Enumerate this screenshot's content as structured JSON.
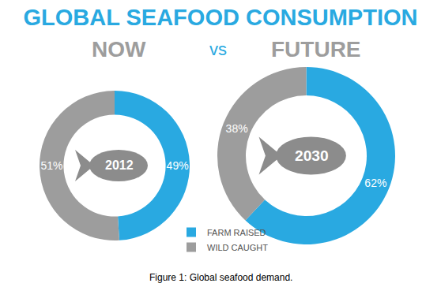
{
  "title": "GLOBAL SEAFOOD CONSUMPTION",
  "subtitle": "vs",
  "caption": "Figure 1: Global seafood demand.",
  "chart_data": [
    {
      "type": "pie",
      "title": "NOW",
      "annotations": [
        "2012"
      ],
      "categories": [
        "FARM RAISED",
        "WILD CAUGHT"
      ],
      "values": [
        49,
        51
      ],
      "value_labels": [
        "49%",
        "51%"
      ],
      "colors": [
        "#29a9e1",
        "#9d9d9d"
      ],
      "data_labels": true,
      "legend": "bottom"
    },
    {
      "type": "pie",
      "title": "FUTURE",
      "annotations": [
        "2030"
      ],
      "categories": [
        "FARM RAISED",
        "WILD CAUGHT"
      ],
      "values": [
        62,
        38
      ],
      "value_labels": [
        "62%",
        "38%"
      ],
      "colors": [
        "#29a9e1",
        "#9d9d9d"
      ],
      "data_labels": true
    }
  ]
}
